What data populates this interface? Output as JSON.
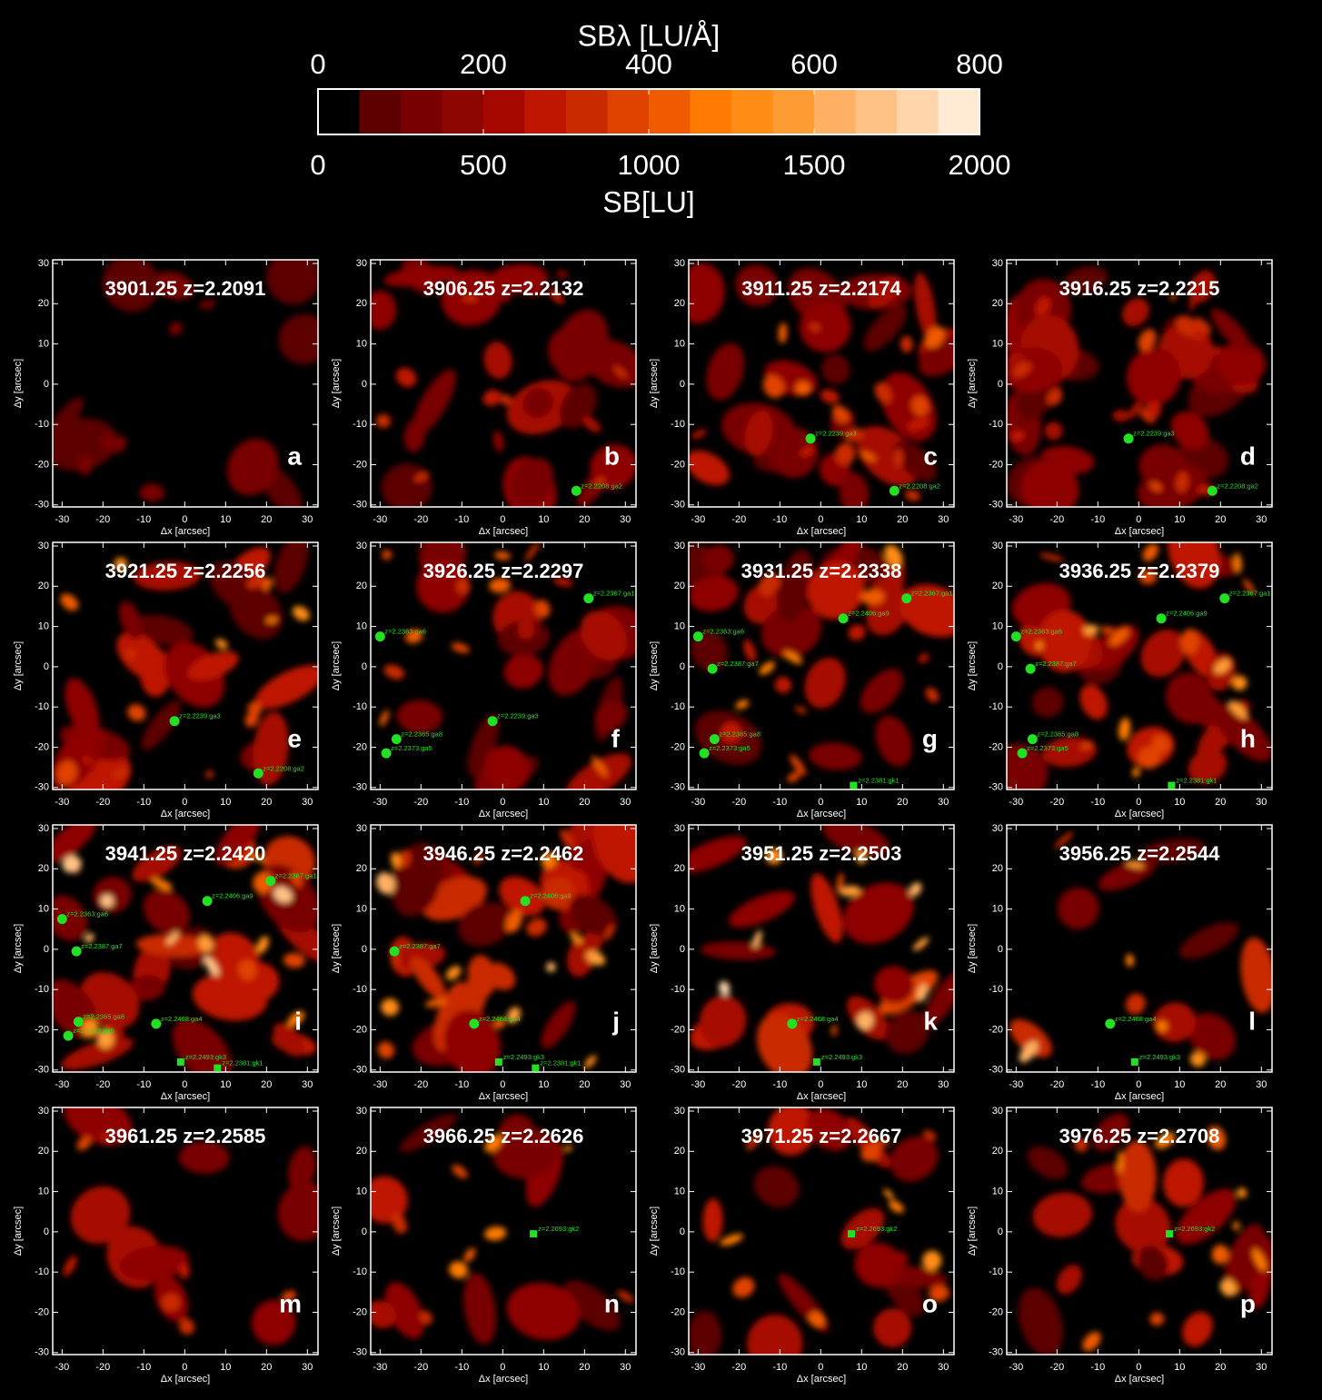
{
  "colorbar": {
    "title_top": "SBλ [LU/Å]",
    "title_bottom": "SB[LU]",
    "top_lim": [
      0,
      800
    ],
    "top_ticks": [
      0,
      200,
      400,
      600,
      800
    ],
    "bottom_lim": [
      0,
      2000
    ],
    "bottom_ticks": [
      0,
      500,
      1000,
      1500,
      2000
    ],
    "colors": [
      "#000000",
      "#5c0000",
      "#780000",
      "#8e0600",
      "#a60800",
      "#be1600",
      "#c92a00",
      "#e04200",
      "#f05a00",
      "#ff7a00",
      "#ff8c14",
      "#ff9c34",
      "#ffb062",
      "#ffc285",
      "#ffd6ab",
      "#ffead4"
    ]
  },
  "axes": {
    "xlim": [
      -32.3,
      32.6
    ],
    "ylim": [
      -30.5,
      30.9
    ],
    "xticks": [
      -30,
      -20,
      -10,
      0,
      10,
      20,
      30
    ],
    "yticks": [
      -30,
      -20,
      -10,
      0,
      10,
      20,
      30
    ],
    "xlabel": "Δx [arcsec]",
    "ylabel": "Δy [arcsec]"
  },
  "source_color": "#22e022",
  "panels": [
    {
      "title": "3901.25 z=2.2091",
      "letter": "a",
      "sources": []
    },
    {
      "title": "3906.25 z=2.2132",
      "letter": "b",
      "sources": [
        {
          "x": 18,
          "y": -26.5,
          "label": "z=2.2208:ga2",
          "shape": "circle"
        }
      ]
    },
    {
      "title": "3911.25 z=2.2174",
      "letter": "c",
      "sources": [
        {
          "x": -2.5,
          "y": -13.5,
          "label": "z=2.2239:ga3",
          "shape": "circle"
        },
        {
          "x": 18,
          "y": -26.5,
          "label": "z=2.2208:ga2",
          "shape": "circle"
        }
      ]
    },
    {
      "title": "3916.25 z=2.2215",
      "letter": "d",
      "sources": [
        {
          "x": -2.5,
          "y": -13.5,
          "label": "z=2.2239:ga3",
          "shape": "circle"
        },
        {
          "x": 18,
          "y": -26.5,
          "label": "z=2.2208:ga2",
          "shape": "circle"
        }
      ]
    },
    {
      "title": "3921.25 z=2.2256",
      "letter": "e",
      "sources": [
        {
          "x": -2.5,
          "y": -13.5,
          "label": "z=2.2239:ga3",
          "shape": "circle"
        },
        {
          "x": 18,
          "y": -26.5,
          "label": "z=2.2208:ga2",
          "shape": "circle"
        }
      ]
    },
    {
      "title": "3926.25 z=2.2297",
      "letter": "f",
      "sources": [
        {
          "x": 21,
          "y": 17,
          "label": "z=2.2367:ga1",
          "shape": "circle"
        },
        {
          "x": -30,
          "y": 7.5,
          "label": "z=2.2363:ga6",
          "shape": "circle"
        },
        {
          "x": -26,
          "y": -18,
          "label": "z=2.2365:ga8",
          "shape": "circle"
        },
        {
          "x": -28.5,
          "y": -21.5,
          "label": "z=2.2373:ga5",
          "shape": "circle"
        },
        {
          "x": -2.5,
          "y": -13.5,
          "label": "z=2.2239:ga3",
          "shape": "circle"
        }
      ]
    },
    {
      "title": "3931.25 z=2.2338",
      "letter": "g",
      "sources": [
        {
          "x": 21,
          "y": 17,
          "label": "z=2.2367:ga1",
          "shape": "circle"
        },
        {
          "x": 5.5,
          "y": 12,
          "label": "z=2.2406:ga9",
          "shape": "circle"
        },
        {
          "x": -30,
          "y": 7.5,
          "label": "z=2.2363:ga6",
          "shape": "circle"
        },
        {
          "x": -26.5,
          "y": -0.5,
          "label": "z=2.2387:ga7",
          "shape": "circle"
        },
        {
          "x": -26,
          "y": -18,
          "label": "z=2.2365:ga8",
          "shape": "circle"
        },
        {
          "x": -28.5,
          "y": -21.5,
          "label": "z=2.2373:ga5",
          "shape": "circle"
        },
        {
          "x": 8,
          "y": -29.5,
          "label": "z=2.2381:gk1",
          "shape": "square"
        }
      ]
    },
    {
      "title": "3936.25 z=2.2379",
      "letter": "h",
      "sources": [
        {
          "x": 21,
          "y": 17,
          "label": "z=2.2367:ga1",
          "shape": "circle"
        },
        {
          "x": 5.5,
          "y": 12,
          "label": "z=2.2406:ga9",
          "shape": "circle"
        },
        {
          "x": -30,
          "y": 7.5,
          "label": "z=2.2363:ga6",
          "shape": "circle"
        },
        {
          "x": -26.5,
          "y": -0.5,
          "label": "z=2.2387:ga7",
          "shape": "circle"
        },
        {
          "x": -26,
          "y": -18,
          "label": "z=2.2365:ga8",
          "shape": "circle"
        },
        {
          "x": -28.5,
          "y": -21.5,
          "label": "z=2.2373:ga5",
          "shape": "circle"
        },
        {
          "x": 8,
          "y": -29.5,
          "label": "z=2.2381:gk1",
          "shape": "square"
        }
      ]
    },
    {
      "title": "3941.25 z=2.2420",
      "letter": "i",
      "sources": [
        {
          "x": 21,
          "y": 17,
          "label": "z=2.2367:ga1",
          "shape": "circle"
        },
        {
          "x": 5.5,
          "y": 12,
          "label": "z=2.2406:ga9",
          "shape": "circle"
        },
        {
          "x": -30,
          "y": 7.5,
          "label": "z=2.2363:ga6",
          "shape": "circle"
        },
        {
          "x": -26.5,
          "y": -0.5,
          "label": "z=2.2387:ga7",
          "shape": "circle"
        },
        {
          "x": -26,
          "y": -18,
          "label": "z=2.2365:ga8",
          "shape": "circle"
        },
        {
          "x": -28.5,
          "y": -21.5,
          "label": "z=2.2373:ga5",
          "shape": "circle"
        },
        {
          "x": -7,
          "y": -18.5,
          "label": "z=2.2468:ga4",
          "shape": "circle"
        },
        {
          "x": -1,
          "y": -28,
          "label": "z=2.2493:gk3",
          "shape": "square"
        },
        {
          "x": 8,
          "y": -29.5,
          "label": "z=2.2381:gk1",
          "shape": "square"
        }
      ]
    },
    {
      "title": "3946.25 z=2.2462",
      "letter": "j",
      "sources": [
        {
          "x": 5.5,
          "y": 12,
          "label": "z=2.2406:ga9",
          "shape": "circle"
        },
        {
          "x": -26.5,
          "y": -0.5,
          "label": "z=2.2387:ga7",
          "shape": "circle"
        },
        {
          "x": -7,
          "y": -18.5,
          "label": "z=2.2468:ga4",
          "shape": "circle"
        },
        {
          "x": -1,
          "y": -28,
          "label": "z=2.2493:gk3",
          "shape": "square"
        },
        {
          "x": 8,
          "y": -29.5,
          "label": "z=2.2381:gk1",
          "shape": "square"
        }
      ]
    },
    {
      "title": "3951.25 z=2.2503",
      "letter": "k",
      "sources": [
        {
          "x": -7,
          "y": -18.5,
          "label": "z=2.2468:ga4",
          "shape": "circle"
        },
        {
          "x": -1,
          "y": -28,
          "label": "z=2.2493:gk3",
          "shape": "square"
        }
      ]
    },
    {
      "title": "3956.25 z=2.2544",
      "letter": "l",
      "sources": [
        {
          "x": -7,
          "y": -18.5,
          "label": "z=2.2468:ga4",
          "shape": "circle"
        },
        {
          "x": -1,
          "y": -28,
          "label": "z=2.2493:gk3",
          "shape": "square"
        }
      ]
    },
    {
      "title": "3961.25 z=2.2585",
      "letter": "m",
      "sources": []
    },
    {
      "title": "3966.25 z=2.2626",
      "letter": "n",
      "sources": [
        {
          "x": 7.5,
          "y": -0.5,
          "label": "z=2.2693:gk2",
          "shape": "square"
        }
      ]
    },
    {
      "title": "3971.25 z=2.2667",
      "letter": "o",
      "sources": [
        {
          "x": 7.5,
          "y": -0.5,
          "label": "z=2.2693:gk2",
          "shape": "square"
        }
      ]
    },
    {
      "title": "3976.25 z=2.2708",
      "letter": "p",
      "sources": [
        {
          "x": 7.5,
          "y": -0.5,
          "label": "z=2.2693:gk2",
          "shape": "square"
        }
      ]
    }
  ]
}
